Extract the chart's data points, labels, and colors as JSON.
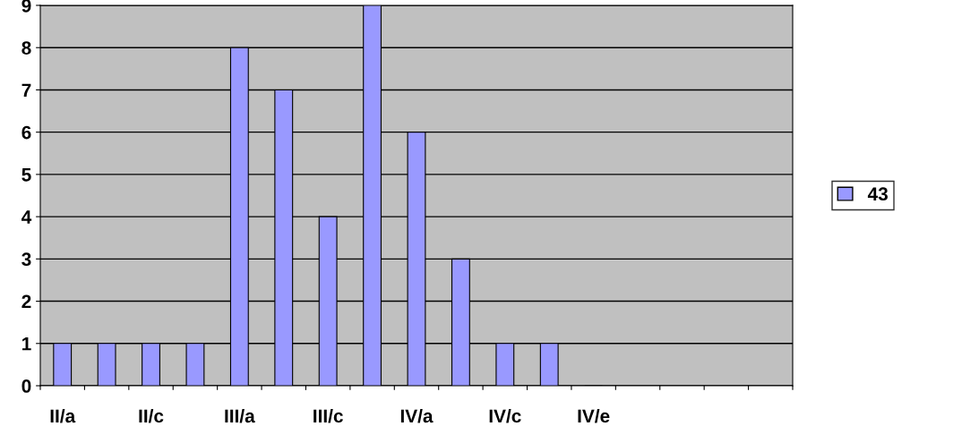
{
  "chart_data": {
    "type": "bar",
    "categories": [
      "II/a",
      null,
      "II/c",
      null,
      "III/a",
      null,
      "III/c",
      null,
      "IV/a",
      null,
      "IV/c",
      null,
      "IV/e",
      null,
      null,
      null,
      null
    ],
    "series": [
      {
        "name": "43",
        "color": "#9999ff",
        "values": [
          1,
          1,
          1,
          1,
          8,
          7,
          4,
          9,
          6,
          3,
          1,
          1,
          0,
          null,
          null,
          null,
          null
        ]
      }
    ],
    "ylim": [
      0,
      9
    ],
    "yticks": [
      0,
      1,
      2,
      3,
      4,
      5,
      6,
      7,
      8,
      9
    ],
    "grid": "y",
    "legend": "right"
  }
}
